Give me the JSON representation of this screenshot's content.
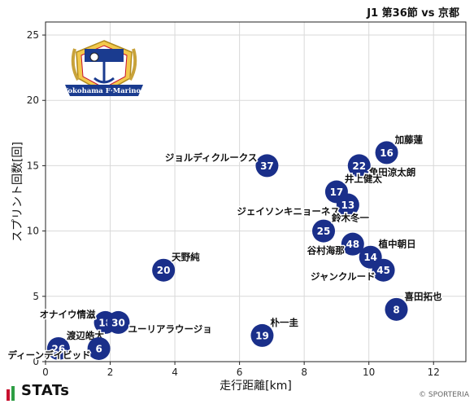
{
  "header": {
    "title": "J1 第36節 vs 京都"
  },
  "footer": {
    "brand": "STATs",
    "copyright": "© SPORTERIA"
  },
  "logo": {
    "text": "Yokohama F·Marinos"
  },
  "colors": {
    "point": "#1a2f8a",
    "point_text": "#ffffff",
    "grid": "#d9d9d9",
    "frame": "#222222"
  },
  "chart_data": {
    "type": "scatter",
    "xlabel": "走行距離[km]",
    "ylabel": "スプリント回数[回]",
    "xlim": [
      0,
      13
    ],
    "ylim": [
      0,
      26
    ],
    "xticks": [
      0,
      2,
      4,
      6,
      8,
      10,
      12
    ],
    "yticks": [
      0,
      5,
      10,
      15,
      20,
      25
    ],
    "grid": true,
    "points": [
      {
        "number": "16",
        "name": "加藤蓮",
        "x": 10.55,
        "y": 16,
        "label_pos": "upper-right"
      },
      {
        "number": "22",
        "name": "角田涼太朗",
        "x": 9.7,
        "y": 15,
        "label_pos": "lower-right"
      },
      {
        "number": "37",
        "name": "ジョルディクルークス",
        "x": 6.85,
        "y": 15,
        "label_pos": "upper-left"
      },
      {
        "number": "17",
        "name": "井上健太",
        "x": 9.0,
        "y": 13,
        "label_pos": "upper-right"
      },
      {
        "number": "13",
        "name": "ジェイソンキニョーネス",
        "x": 9.35,
        "y": 12,
        "label_pos": "lower-left"
      },
      {
        "number": "25",
        "name": "鈴木冬一",
        "x": 8.6,
        "y": 10,
        "label_pos": "upper-right"
      },
      {
        "number": "48",
        "name": "谷村海那",
        "x": 9.5,
        "y": 9,
        "label_pos": "lower-left"
      },
      {
        "number": "14",
        "name": "植中朝日",
        "x": 10.05,
        "y": 8,
        "label_pos": "upper-right"
      },
      {
        "number": "45",
        "name": "ジャンクルード",
        "x": 10.45,
        "y": 7,
        "label_pos": "lower-left"
      },
      {
        "number": "20",
        "name": "天野純",
        "x": 3.65,
        "y": 7,
        "label_pos": "upper-right"
      },
      {
        "number": "8",
        "name": "喜田拓也",
        "x": 10.85,
        "y": 4,
        "label_pos": "upper-right"
      },
      {
        "number": "18",
        "name": "オナイウ情滋",
        "x": 1.85,
        "y": 3,
        "label_pos": "upper-left"
      },
      {
        "number": "30",
        "name": "ユーリアラウージョ",
        "x": 2.25,
        "y": 3,
        "label_pos": "lower-right"
      },
      {
        "number": "19",
        "name": "朴一圭",
        "x": 6.7,
        "y": 2,
        "label_pos": "upper-right"
      },
      {
        "number": "26",
        "name": "渡辺皓太",
        "x": 0.4,
        "y": 1,
        "label_pos": "upper-right"
      },
      {
        "number": "6",
        "name": "ディーンデイビッド",
        "x": 1.65,
        "y": 1,
        "label_pos": "lower-left"
      }
    ]
  }
}
